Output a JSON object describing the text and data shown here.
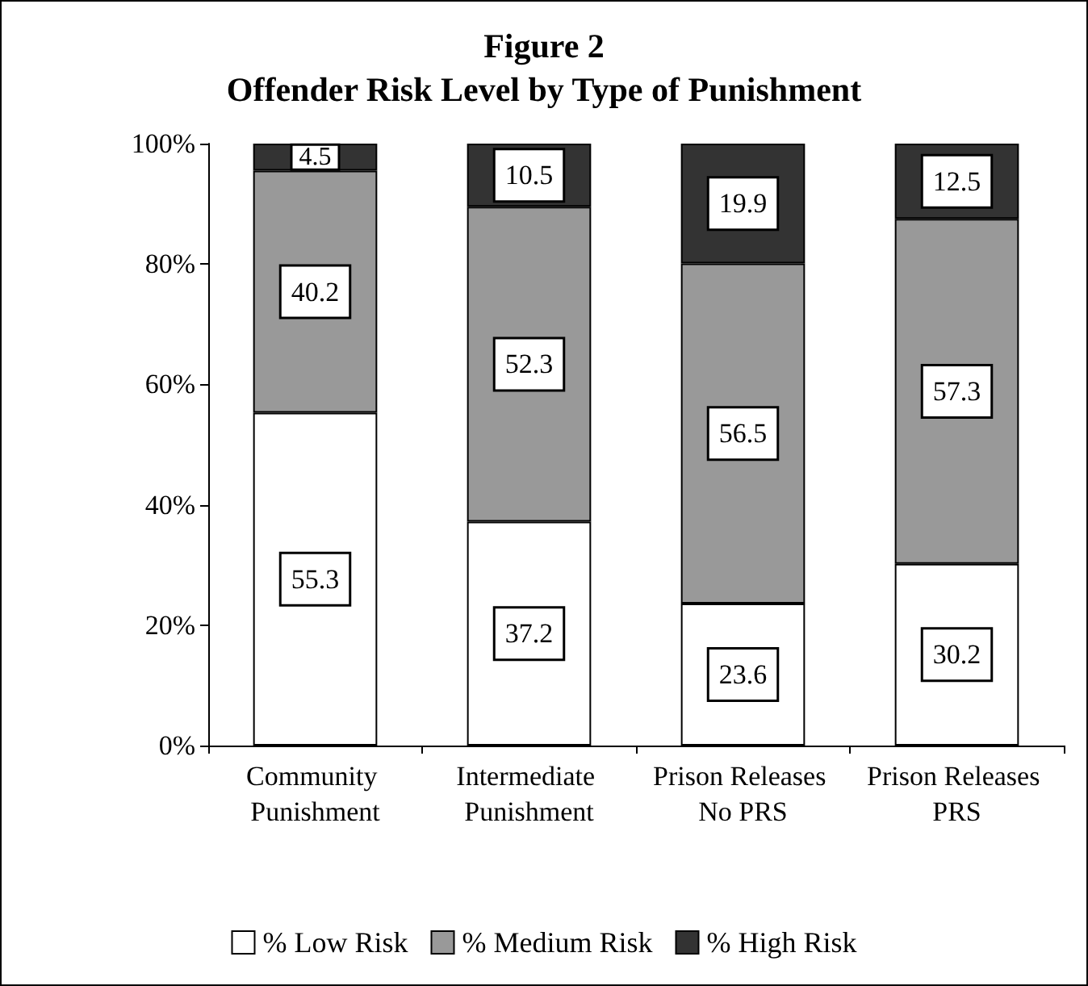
{
  "chart_data": {
    "type": "bar",
    "stacked": true,
    "title": "Figure 2",
    "subtitle": "Offender Risk Level by Type of Punishment",
    "categories": [
      "Community Punishment",
      "Intermediate Punishment",
      "Prison Releases No PRS",
      "Prison Releases PRS"
    ],
    "series": [
      {
        "name": "% Low Risk",
        "color": "#ffffff",
        "values": [
          55.3,
          37.2,
          23.6,
          30.2
        ]
      },
      {
        "name": "% Medium Risk",
        "color": "#999999",
        "values": [
          40.2,
          52.3,
          56.5,
          57.3
        ]
      },
      {
        "name": "% High Risk",
        "color": "#333333",
        "values": [
          4.5,
          10.5,
          19.9,
          12.5
        ]
      }
    ],
    "ylim": [
      0,
      100
    ],
    "yticks": [
      {
        "value": 0,
        "label": "0%"
      },
      {
        "value": 20,
        "label": "20%"
      },
      {
        "value": 40,
        "label": "40%"
      },
      {
        "value": 60,
        "label": "60%"
      },
      {
        "value": 80,
        "label": "80%"
      },
      {
        "value": 100,
        "label": "100%"
      }
    ],
    "data_labels": true,
    "grid": false,
    "legend": "bottom"
  }
}
